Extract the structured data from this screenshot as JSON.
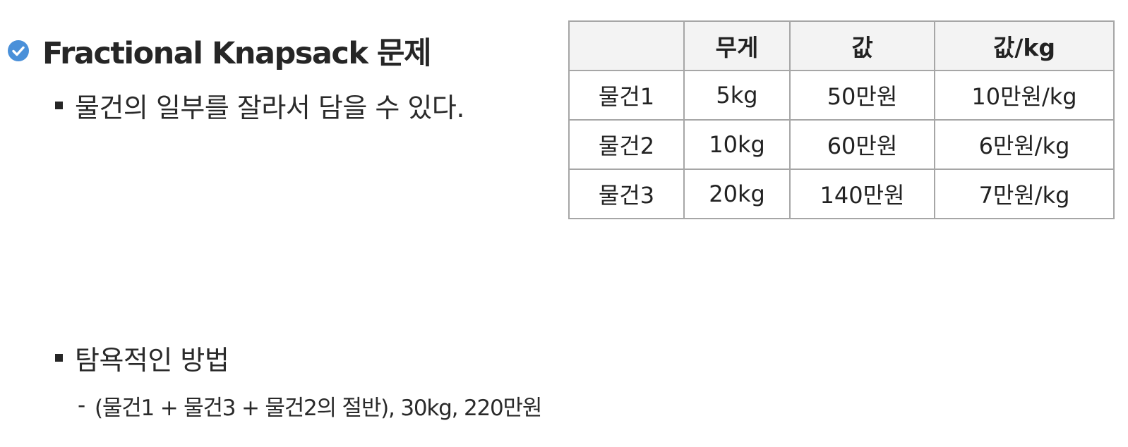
{
  "title": "Fractional Knapsack 문제",
  "bullets": {
    "partial": "물건의 일부를 잘라서 담을 수 있다.",
    "greedy": "탐욕적인 방법",
    "greedy_detail_dash": "-",
    "greedy_detail": "(물건1 + 물건3 + 물건2의 절반), 30kg, 220만원"
  },
  "table": {
    "headers": [
      "",
      "무게",
      "값",
      "값/kg"
    ],
    "rows": [
      [
        "물건1",
        "5kg",
        "50만원",
        "10만원/kg"
      ],
      [
        "물건2",
        "10kg",
        "60만원",
        "6만원/kg"
      ],
      [
        "물건3",
        "20kg",
        "140만원",
        "7만원/kg"
      ]
    ]
  },
  "colors": {
    "check_icon": "#4a90d9",
    "text": "#222222",
    "table_border": "#a6a6a6",
    "header_bg": "#f3f3f3"
  }
}
